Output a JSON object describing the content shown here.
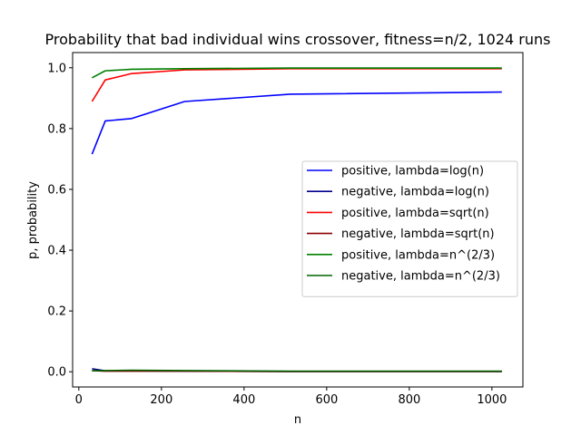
{
  "chart_data": {
    "type": "line",
    "title": "Probability that bad individual wins crossover, fitness=n/2, 1024 runs",
    "xlabel": "n",
    "ylabel": "p, probability",
    "xlim": [
      -15,
      1075
    ],
    "ylim": [
      -0.05,
      1.05
    ],
    "xticks": [
      0,
      200,
      400,
      600,
      800,
      1000
    ],
    "xtick_labels": [
      "0",
      "200",
      "400",
      "600",
      "800",
      "1000"
    ],
    "yticks": [
      0.0,
      0.2,
      0.4,
      0.6,
      0.8,
      1.0
    ],
    "ytick_labels": [
      "0.0",
      "0.2",
      "0.4",
      "0.6",
      "0.8",
      "1.0"
    ],
    "grid": false,
    "legend_position": "center-right",
    "x": [
      32,
      64,
      128,
      256,
      512,
      1024
    ],
    "series": [
      {
        "name": "positive, lambda=log(n)",
        "color": "#0000ff",
        "values": [
          0.716,
          0.825,
          0.833,
          0.889,
          0.913,
          0.92
        ]
      },
      {
        "name": "negative, lambda=log(n)",
        "color": "#00008b",
        "values": [
          0.01,
          0.003,
          0.003,
          0.002,
          0.001,
          0.001
        ]
      },
      {
        "name": "positive, lambda=sqrt(n)",
        "color": "#ff0000",
        "values": [
          0.889,
          0.96,
          0.981,
          0.993,
          0.997,
          0.997
        ]
      },
      {
        "name": "negative, lambda=sqrt(n)",
        "color": "#8b0000",
        "values": [
          0.004,
          0.002,
          0.002,
          0.002,
          0.001,
          0.001
        ]
      },
      {
        "name": "positive, lambda=n^(2/3)",
        "color": "#008000",
        "values": [
          0.967,
          0.99,
          0.995,
          0.997,
          0.999,
          0.999
        ]
      },
      {
        "name": "negative, lambda=n^(2/3)",
        "color": "#006400",
        "values": [
          0.003,
          0.004,
          0.005,
          0.004,
          0.002,
          0.002
        ]
      }
    ]
  }
}
